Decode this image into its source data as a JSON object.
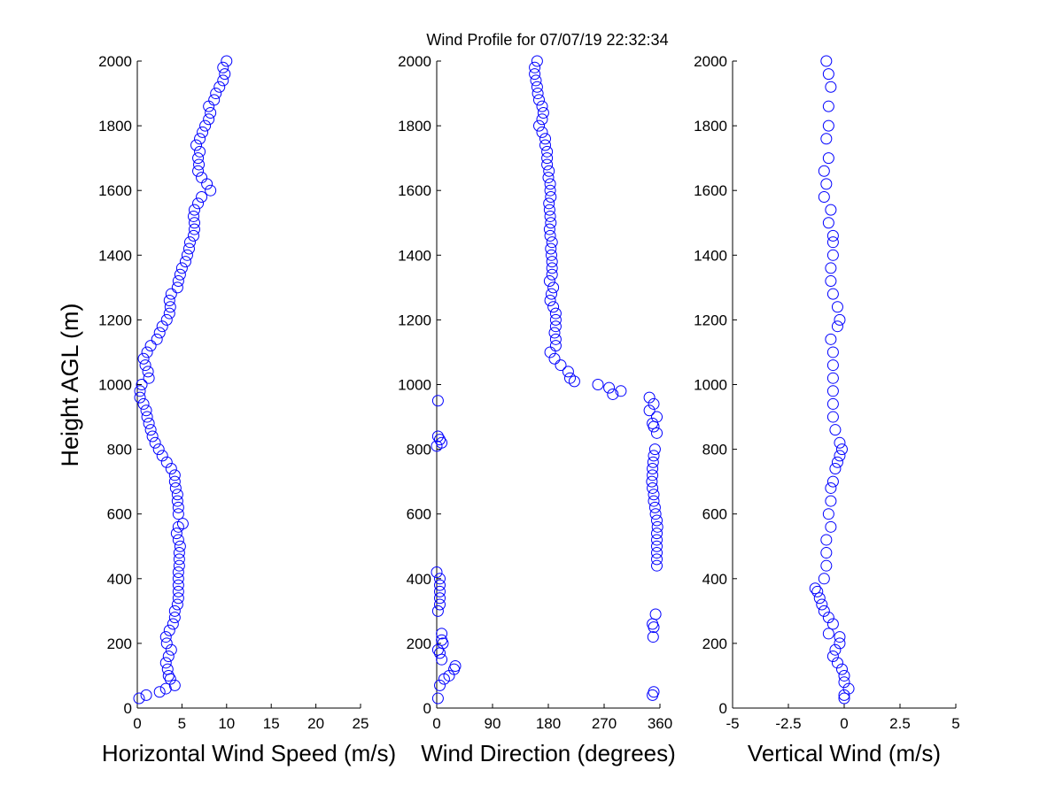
{
  "chart_data": [
    {
      "type": "scatter",
      "title": "Wind Profile for  07/07/19 22:32:34",
      "xlabel": "Horizontal Wind Speed (m/s)",
      "ylabel": "Height AGL (m)",
      "xlim": [
        0,
        25
      ],
      "ylim": [
        0,
        2000
      ],
      "xticks": [
        "0",
        "5",
        "10",
        "15",
        "20",
        "25"
      ],
      "xtick_values": [
        0,
        5,
        10,
        15,
        20,
        25
      ],
      "yticks": [
        "0",
        "200",
        "400",
        "600",
        "800",
        "1000",
        "1200",
        "1400",
        "1600",
        "1800",
        "2000"
      ],
      "marker": "open-circle",
      "color": "#0000ff",
      "grid": false,
      "points": [
        [
          0.2,
          30
        ],
        [
          1.0,
          40
        ],
        [
          2.5,
          50
        ],
        [
          3.2,
          60
        ],
        [
          4.2,
          70
        ],
        [
          3.7,
          90
        ],
        [
          3.5,
          100
        ],
        [
          3.4,
          120
        ],
        [
          3.2,
          140
        ],
        [
          3.5,
          160
        ],
        [
          3.8,
          180
        ],
        [
          3.3,
          200
        ],
        [
          3.2,
          220
        ],
        [
          3.6,
          240
        ],
        [
          4.0,
          260
        ],
        [
          4.2,
          280
        ],
        [
          4.2,
          300
        ],
        [
          4.5,
          320
        ],
        [
          4.6,
          340
        ],
        [
          4.6,
          360
        ],
        [
          4.6,
          380
        ],
        [
          4.6,
          400
        ],
        [
          4.6,
          420
        ],
        [
          4.7,
          440
        ],
        [
          4.7,
          460
        ],
        [
          4.7,
          480
        ],
        [
          4.8,
          500
        ],
        [
          4.6,
          520
        ],
        [
          4.4,
          540
        ],
        [
          4.6,
          560
        ],
        [
          5.1,
          570
        ],
        [
          4.6,
          600
        ],
        [
          4.6,
          620
        ],
        [
          4.5,
          640
        ],
        [
          4.5,
          660
        ],
        [
          4.3,
          680
        ],
        [
          4.2,
          700
        ],
        [
          4.2,
          720
        ],
        [
          3.8,
          740
        ],
        [
          3.3,
          760
        ],
        [
          2.8,
          780
        ],
        [
          2.4,
          800
        ],
        [
          2.0,
          820
        ],
        [
          1.7,
          840
        ],
        [
          1.5,
          860
        ],
        [
          1.3,
          880
        ],
        [
          1.1,
          900
        ],
        [
          1.0,
          920
        ],
        [
          0.7,
          940
        ],
        [
          0.3,
          960
        ],
        [
          0.3,
          980
        ],
        [
          0.5,
          1000
        ],
        [
          1.3,
          1020
        ],
        [
          1.2,
          1040
        ],
        [
          0.9,
          1060
        ],
        [
          0.7,
          1080
        ],
        [
          1.1,
          1100
        ],
        [
          1.5,
          1120
        ],
        [
          2.2,
          1140
        ],
        [
          2.5,
          1160
        ],
        [
          2.8,
          1180
        ],
        [
          3.3,
          1200
        ],
        [
          3.6,
          1220
        ],
        [
          3.7,
          1240
        ],
        [
          3.6,
          1260
        ],
        [
          3.8,
          1280
        ],
        [
          4.5,
          1300
        ],
        [
          4.6,
          1320
        ],
        [
          4.8,
          1340
        ],
        [
          5.0,
          1360
        ],
        [
          5.4,
          1380
        ],
        [
          5.6,
          1400
        ],
        [
          5.8,
          1420
        ],
        [
          5.9,
          1440
        ],
        [
          6.3,
          1460
        ],
        [
          6.4,
          1480
        ],
        [
          6.4,
          1500
        ],
        [
          6.3,
          1520
        ],
        [
          6.4,
          1540
        ],
        [
          6.8,
          1560
        ],
        [
          7.2,
          1580
        ],
        [
          8.2,
          1600
        ],
        [
          7.8,
          1620
        ],
        [
          7.2,
          1640
        ],
        [
          6.8,
          1660
        ],
        [
          6.9,
          1680
        ],
        [
          6.8,
          1700
        ],
        [
          7.0,
          1720
        ],
        [
          6.6,
          1740
        ],
        [
          7.0,
          1760
        ],
        [
          7.3,
          1780
        ],
        [
          7.6,
          1800
        ],
        [
          8.0,
          1820
        ],
        [
          8.2,
          1840
        ],
        [
          8.0,
          1860
        ],
        [
          8.6,
          1880
        ],
        [
          8.8,
          1900
        ],
        [
          9.2,
          1920
        ],
        [
          9.6,
          1940
        ],
        [
          9.8,
          1960
        ],
        [
          9.6,
          1980
        ],
        [
          10.0,
          2000
        ]
      ]
    },
    {
      "type": "scatter",
      "xlabel": "Wind Direction (degrees)",
      "xlim": [
        0,
        360
      ],
      "ylim": [
        0,
        2000
      ],
      "xticks": [
        "0",
        "90",
        "180",
        "270",
        "360"
      ],
      "xtick_values": [
        0,
        90,
        180,
        270,
        360
      ],
      "yticks": [
        "0",
        "200",
        "400",
        "600",
        "800",
        "1000",
        "1200",
        "1400",
        "1600",
        "1800",
        "2000"
      ],
      "marker": "open-circle",
      "color": "#0000ff",
      "grid": false,
      "points": [
        [
          2,
          30
        ],
        [
          348,
          40
        ],
        [
          350,
          50
        ],
        [
          5,
          70
        ],
        [
          12,
          90
        ],
        [
          20,
          100
        ],
        [
          28,
          120
        ],
        [
          30,
          130
        ],
        [
          8,
          150
        ],
        [
          5,
          170
        ],
        [
          2,
          180
        ],
        [
          10,
          200
        ],
        [
          8,
          210
        ],
        [
          349,
          220
        ],
        [
          8,
          230
        ],
        [
          350,
          250
        ],
        [
          348,
          260
        ],
        [
          353,
          290
        ],
        [
          2,
          300
        ],
        [
          5,
          320
        ],
        [
          5,
          340
        ],
        [
          5,
          360
        ],
        [
          5,
          380
        ],
        [
          5,
          400
        ],
        [
          0,
          420
        ],
        [
          355,
          440
        ],
        [
          355,
          460
        ],
        [
          355,
          480
        ],
        [
          355,
          500
        ],
        [
          355,
          520
        ],
        [
          355,
          540
        ],
        [
          356,
          560
        ],
        [
          355,
          580
        ],
        [
          353,
          600
        ],
        [
          352,
          620
        ],
        [
          350,
          640
        ],
        [
          350,
          660
        ],
        [
          348,
          680
        ],
        [
          347,
          700
        ],
        [
          348,
          720
        ],
        [
          348,
          740
        ],
        [
          349,
          760
        ],
        [
          350,
          780
        ],
        [
          352,
          800
        ],
        [
          0,
          810
        ],
        [
          8,
          820
        ],
        [
          5,
          830
        ],
        [
          2,
          840
        ],
        [
          355,
          850
        ],
        [
          350,
          870
        ],
        [
          348,
          880
        ],
        [
          355,
          900
        ],
        [
          343,
          920
        ],
        [
          350,
          940
        ],
        [
          2,
          950
        ],
        [
          343,
          960
        ],
        [
          284,
          970
        ],
        [
          297,
          980
        ],
        [
          278,
          990
        ],
        [
          260,
          1000
        ],
        [
          222,
          1010
        ],
        [
          215,
          1020
        ],
        [
          212,
          1040
        ],
        [
          200,
          1060
        ],
        [
          190,
          1080
        ],
        [
          183,
          1100
        ],
        [
          192,
          1120
        ],
        [
          192,
          1140
        ],
        [
          190,
          1160
        ],
        [
          192,
          1180
        ],
        [
          192,
          1200
        ],
        [
          192,
          1220
        ],
        [
          188,
          1240
        ],
        [
          183,
          1260
        ],
        [
          185,
          1280
        ],
        [
          188,
          1300
        ],
        [
          182,
          1320
        ],
        [
          186,
          1340
        ],
        [
          186,
          1360
        ],
        [
          186,
          1380
        ],
        [
          185,
          1400
        ],
        [
          184,
          1420
        ],
        [
          186,
          1440
        ],
        [
          183,
          1460
        ],
        [
          182,
          1480
        ],
        [
          184,
          1500
        ],
        [
          183,
          1520
        ],
        [
          182,
          1540
        ],
        [
          181,
          1560
        ],
        [
          184,
          1580
        ],
        [
          183,
          1600
        ],
        [
          183,
          1620
        ],
        [
          180,
          1640
        ],
        [
          181,
          1660
        ],
        [
          178,
          1680
        ],
        [
          178,
          1700
        ],
        [
          178,
          1720
        ],
        [
          175,
          1740
        ],
        [
          175,
          1760
        ],
        [
          170,
          1780
        ],
        [
          165,
          1800
        ],
        [
          170,
          1820
        ],
        [
          172,
          1840
        ],
        [
          170,
          1860
        ],
        [
          165,
          1880
        ],
        [
          163,
          1900
        ],
        [
          162,
          1920
        ],
        [
          160,
          1940
        ],
        [
          158,
          1960
        ],
        [
          158,
          1980
        ],
        [
          162,
          2000
        ]
      ]
    },
    {
      "type": "scatter",
      "xlabel": "Vertical Wind (m/s)",
      "xlim": [
        -5,
        5
      ],
      "ylim": [
        0,
        2000
      ],
      "xticks": [
        "-5",
        "-2.5",
        "0",
        "2.5",
        "5"
      ],
      "xtick_values": [
        -5,
        -2.5,
        0,
        2.5,
        5
      ],
      "yticks": [
        "0",
        "200",
        "400",
        "600",
        "800",
        "1000",
        "1200",
        "1400",
        "1600",
        "1800",
        "2000"
      ],
      "marker": "open-circle",
      "color": "#0000ff",
      "grid": false,
      "points": [
        [
          0,
          30
        ],
        [
          0,
          40
        ],
        [
          0.2,
          60
        ],
        [
          0,
          80
        ],
        [
          0,
          100
        ],
        [
          -0.1,
          120
        ],
        [
          -0.3,
          140
        ],
        [
          -0.5,
          160
        ],
        [
          -0.4,
          180
        ],
        [
          -0.2,
          200
        ],
        [
          -0.2,
          220
        ],
        [
          -0.7,
          230
        ],
        [
          -0.5,
          260
        ],
        [
          -0.7,
          280
        ],
        [
          -0.9,
          300
        ],
        [
          -1.0,
          320
        ],
        [
          -1.1,
          340
        ],
        [
          -1.2,
          360
        ],
        [
          -1.3,
          370
        ],
        [
          -0.9,
          400
        ],
        [
          -0.8,
          440
        ],
        [
          -0.8,
          480
        ],
        [
          -0.8,
          520
        ],
        [
          -0.6,
          560
        ],
        [
          -0.7,
          600
        ],
        [
          -0.6,
          640
        ],
        [
          -0.6,
          680
        ],
        [
          -0.5,
          700
        ],
        [
          -0.4,
          740
        ],
        [
          -0.3,
          760
        ],
        [
          -0.2,
          780
        ],
        [
          -0.1,
          800
        ],
        [
          -0.2,
          820
        ],
        [
          -0.4,
          860
        ],
        [
          -0.5,
          900
        ],
        [
          -0.5,
          940
        ],
        [
          -0.5,
          980
        ],
        [
          -0.5,
          1020
        ],
        [
          -0.5,
          1060
        ],
        [
          -0.5,
          1100
        ],
        [
          -0.6,
          1140
        ],
        [
          -0.3,
          1180
        ],
        [
          -0.2,
          1200
        ],
        [
          -0.3,
          1240
        ],
        [
          -0.5,
          1280
        ],
        [
          -0.6,
          1320
        ],
        [
          -0.6,
          1360
        ],
        [
          -0.5,
          1400
        ],
        [
          -0.5,
          1440
        ],
        [
          -0.5,
          1460
        ],
        [
          -0.7,
          1500
        ],
        [
          -0.6,
          1540
        ],
        [
          -0.9,
          1580
        ],
        [
          -0.8,
          1620
        ],
        [
          -0.9,
          1660
        ],
        [
          -0.7,
          1700
        ],
        [
          -0.8,
          1760
        ],
        [
          -0.7,
          1800
        ],
        [
          -0.7,
          1860
        ],
        [
          -0.6,
          1920
        ],
        [
          -0.7,
          1960
        ],
        [
          -0.8,
          2000
        ]
      ]
    }
  ]
}
